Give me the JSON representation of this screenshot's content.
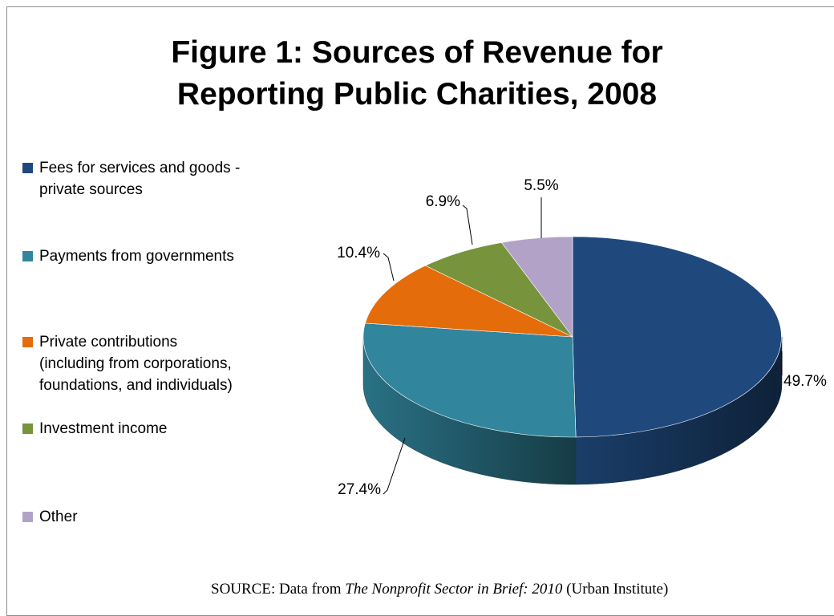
{
  "chart_data": {
    "type": "pie",
    "title_lines": [
      "Figure 1: Sources of Revenue for",
      "Reporting Public Charities, 2008"
    ],
    "legend": [
      {
        "lines": [
          "Fees for services and goods -",
          "private sources"
        ],
        "color": "#1F497D"
      },
      {
        "lines": [
          "Payments from governments"
        ],
        "color": "#31859C"
      },
      {
        "lines": [
          "Private contributions",
          "(including from corporations,",
          "foundations, and individuals)"
        ],
        "color": "#E46C0A"
      },
      {
        "lines": [
          "Investment income"
        ],
        "color": "#77933C"
      },
      {
        "lines": [
          "Other"
        ],
        "color": "#B3A2C7"
      }
    ],
    "slices": [
      {
        "category": "Fees for services and goods - private sources",
        "value": 49.7,
        "label": "49.7%"
      },
      {
        "category": "Payments from governments",
        "value": 27.4,
        "label": "27.4%"
      },
      {
        "category": "Private contributions (including from corporations, foundations, and individuals)",
        "value": 10.4,
        "label": "10.4%"
      },
      {
        "category": "Investment income",
        "value": 6.9,
        "label": "6.9%"
      },
      {
        "category": "Other",
        "value": 5.5,
        "label": "5.5%"
      }
    ],
    "legend_position": "left",
    "style": "3D pie"
  },
  "source": {
    "prefix": "SOURCE: Data from ",
    "italic": "The Nonprofit Sector in Brief: 2010",
    "suffix": " (Urban Institute)"
  }
}
